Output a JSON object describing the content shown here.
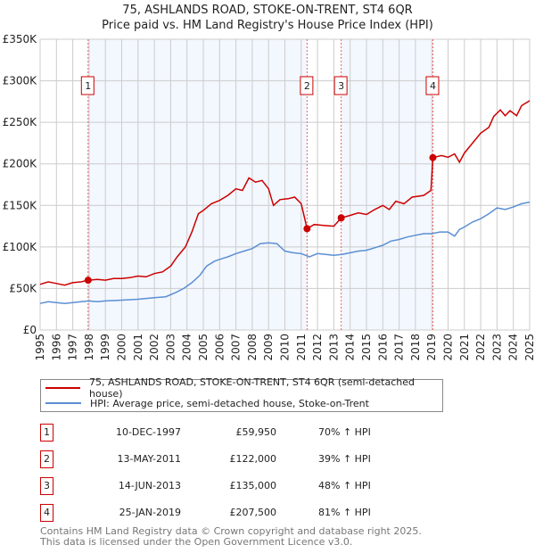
{
  "chart_data": {
    "type": "line",
    "title": "75, ASHLANDS ROAD, STOKE-ON-TRENT, ST4 6QR",
    "subtitle": "Price paid vs. HM Land Registry's House Price Index (HPI)",
    "xlim": [
      1995,
      2025
    ],
    "ylim": [
      0,
      350000
    ],
    "x_ticks": [
      "1995",
      "1996",
      "1997",
      "1998",
      "1999",
      "2000",
      "2001",
      "2002",
      "2003",
      "2004",
      "2005",
      "2006",
      "2007",
      "2008",
      "2009",
      "2010",
      "2011",
      "2012",
      "2013",
      "2014",
      "2015",
      "2016",
      "2017",
      "2018",
      "2019",
      "2020",
      "2021",
      "2022",
      "2023",
      "2024",
      "2025"
    ],
    "y_ticks": [
      {
        "v": 0,
        "label": "£0"
      },
      {
        "v": 50000,
        "label": "£50K"
      },
      {
        "v": 100000,
        "label": "£100K"
      },
      {
        "v": 150000,
        "label": "£150K"
      },
      {
        "v": 200000,
        "label": "£200K"
      },
      {
        "v": 250000,
        "label": "£250K"
      },
      {
        "v": 300000,
        "label": "£300K"
      },
      {
        "v": 350000,
        "label": "£350K"
      }
    ],
    "grid": true,
    "series": [
      {
        "name": "75, ASHLANDS ROAD, STOKE-ON-TRENT, ST4 6QR (semi-detached house)",
        "color": "#cc0000",
        "points": [
          [
            1995,
            55000
          ],
          [
            1995.5,
            58000
          ],
          [
            1996,
            56000
          ],
          [
            1996.5,
            54000
          ],
          [
            1997,
            57000
          ],
          [
            1997.5,
            58000
          ],
          [
            1997.94,
            59950
          ],
          [
            1998.5,
            61000
          ],
          [
            1999,
            60000
          ],
          [
            1999.5,
            62000
          ],
          [
            2000,
            62000
          ],
          [
            2000.5,
            63000
          ],
          [
            2001,
            65000
          ],
          [
            2001.5,
            64000
          ],
          [
            2002,
            68000
          ],
          [
            2002.5,
            70000
          ],
          [
            2003,
            77000
          ],
          [
            2003.4,
            88000
          ],
          [
            2003.9,
            100000
          ],
          [
            2004.3,
            118000
          ],
          [
            2004.7,
            140000
          ],
          [
            2005,
            144000
          ],
          [
            2005.5,
            152000
          ],
          [
            2006,
            156000
          ],
          [
            2006.5,
            162000
          ],
          [
            2007,
            170000
          ],
          [
            2007.4,
            168000
          ],
          [
            2007.8,
            183000
          ],
          [
            2008.2,
            178000
          ],
          [
            2008.6,
            180000
          ],
          [
            2009,
            170000
          ],
          [
            2009.3,
            150000
          ],
          [
            2009.7,
            157000
          ],
          [
            2010.2,
            158000
          ],
          [
            2010.6,
            160000
          ],
          [
            2011,
            152000
          ],
          [
            2011.36,
            122000
          ],
          [
            2011.8,
            127000
          ],
          [
            2012.3,
            126000
          ],
          [
            2013,
            125000
          ],
          [
            2013.45,
            135000
          ],
          [
            2014,
            138000
          ],
          [
            2014.5,
            141000
          ],
          [
            2015,
            139000
          ],
          [
            2015.5,
            145000
          ],
          [
            2016,
            150000
          ],
          [
            2016.4,
            145000
          ],
          [
            2016.8,
            155000
          ],
          [
            2017.3,
            152000
          ],
          [
            2017.8,
            160000
          ],
          [
            2018.5,
            162000
          ],
          [
            2018.95,
            168000
          ],
          [
            2019.07,
            207500
          ],
          [
            2019.6,
            210000
          ],
          [
            2020,
            208000
          ],
          [
            2020.4,
            212000
          ],
          [
            2020.7,
            202000
          ],
          [
            2021,
            213000
          ],
          [
            2021.5,
            225000
          ],
          [
            2022,
            237000
          ],
          [
            2022.5,
            244000
          ],
          [
            2022.8,
            257000
          ],
          [
            2023.2,
            265000
          ],
          [
            2023.5,
            258000
          ],
          [
            2023.8,
            264000
          ],
          [
            2024.2,
            258000
          ],
          [
            2024.5,
            270000
          ],
          [
            2025,
            276000
          ]
        ]
      },
      {
        "name": "HPI: Average price, semi-detached house, Stoke-on-Trent",
        "color": "#5b8fd4",
        "points": [
          [
            1995,
            32000
          ],
          [
            1995.5,
            34000
          ],
          [
            1996,
            33000
          ],
          [
            1996.5,
            32000
          ],
          [
            1997,
            33000
          ],
          [
            1997.5,
            34000
          ],
          [
            1998,
            35000
          ],
          [
            1998.5,
            34000
          ],
          [
            1999,
            35000
          ],
          [
            2000,
            36000
          ],
          [
            2001,
            37000
          ],
          [
            2001.5,
            38000
          ],
          [
            2002,
            39000
          ],
          [
            2002.7,
            40000
          ],
          [
            2003.3,
            45000
          ],
          [
            2003.8,
            50000
          ],
          [
            2004.3,
            57000
          ],
          [
            2004.8,
            66000
          ],
          [
            2005.2,
            77000
          ],
          [
            2005.7,
            83000
          ],
          [
            2006,
            85000
          ],
          [
            2006.5,
            88000
          ],
          [
            2007,
            92000
          ],
          [
            2007.5,
            95000
          ],
          [
            2008,
            98000
          ],
          [
            2008.5,
            104000
          ],
          [
            2009,
            105000
          ],
          [
            2009.5,
            104000
          ],
          [
            2010,
            95000
          ],
          [
            2010.5,
            93000
          ],
          [
            2011,
            92000
          ],
          [
            2011.5,
            88000
          ],
          [
            2012,
            92000
          ],
          [
            2012.5,
            91000
          ],
          [
            2013,
            90000
          ],
          [
            2013.5,
            91000
          ],
          [
            2014,
            93000
          ],
          [
            2014.5,
            95000
          ],
          [
            2015,
            96000
          ],
          [
            2015.5,
            99000
          ],
          [
            2016,
            102000
          ],
          [
            2016.5,
            107000
          ],
          [
            2017,
            109000
          ],
          [
            2017.5,
            112000
          ],
          [
            2018,
            114000
          ],
          [
            2018.5,
            116000
          ],
          [
            2019,
            116000
          ],
          [
            2019.5,
            118000
          ],
          [
            2020,
            118000
          ],
          [
            2020.4,
            113000
          ],
          [
            2020.7,
            121000
          ],
          [
            2021,
            124000
          ],
          [
            2021.5,
            130000
          ],
          [
            2022,
            134000
          ],
          [
            2022.5,
            140000
          ],
          [
            2023,
            147000
          ],
          [
            2023.5,
            145000
          ],
          [
            2024,
            148000
          ],
          [
            2024.5,
            152000
          ],
          [
            2025,
            154000
          ]
        ]
      }
    ],
    "sales": [
      {
        "n": "1",
        "x": 1997.94,
        "price": 59950
      },
      {
        "n": "2",
        "x": 2011.36,
        "price": 122000
      },
      {
        "n": "3",
        "x": 2013.45,
        "price": 135000
      },
      {
        "n": "4",
        "x": 2019.07,
        "price": 207500
      }
    ],
    "legend_placement": "below"
  },
  "legend": {
    "property": "75, ASHLANDS ROAD, STOKE-ON-TRENT, ST4 6QR (semi-detached house)",
    "hpi": "HPI: Average price, semi-detached house, Stoke-on-Trent"
  },
  "table": [
    {
      "n": "1",
      "date": "10-DEC-1997",
      "price": "£59,950",
      "hpi": "70% ↑ HPI"
    },
    {
      "n": "2",
      "date": "13-MAY-2011",
      "price": "£122,000",
      "hpi": "39% ↑ HPI"
    },
    {
      "n": "3",
      "date": "14-JUN-2013",
      "price": "£135,000",
      "hpi": "48% ↑ HPI"
    },
    {
      "n": "4",
      "date": "25-JAN-2019",
      "price": "£207,500",
      "hpi": "81% ↑ HPI"
    }
  ],
  "footer": {
    "line1": "Contains HM Land Registry data © Crown copyright and database right 2025.",
    "line2": "This data is licensed under the Open Government Licence v3.0."
  }
}
